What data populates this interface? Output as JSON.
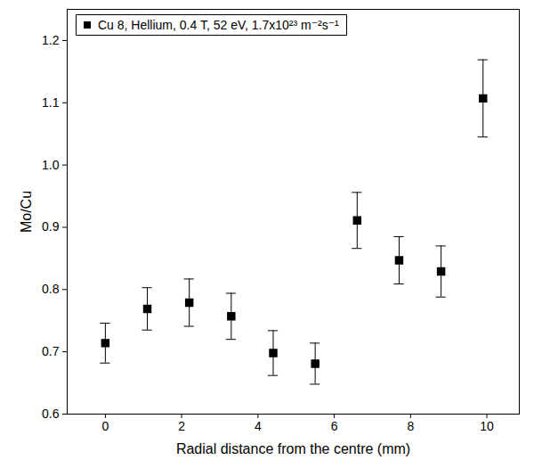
{
  "chart_data": {
    "type": "scatter",
    "x_label": "Radial distance from the centre (mm)",
    "y_label": "Mo/Cu",
    "x": [
      0,
      1.1,
      2.2,
      3.3,
      4.4,
      5.5,
      6.6,
      7.7,
      8.8,
      9.9
    ],
    "series": [
      {
        "name": "Cu 8, Hellium, 0.4 T, 52 eV, 1.7x10²³ m⁻²s⁻¹",
        "color": "#000000",
        "marker": "square",
        "values": [
          0.714,
          0.769,
          0.779,
          0.757,
          0.698,
          0.681,
          0.911,
          0.847,
          0.829,
          1.107
        ],
        "errors": [
          0.032,
          0.034,
          0.038,
          0.037,
          0.036,
          0.033,
          0.045,
          0.038,
          0.041,
          0.062
        ]
      }
    ],
    "xlim": [
      -1,
      10.85
    ],
    "ylim": [
      0.6,
      1.25
    ],
    "xticks": [
      0,
      2,
      4,
      6,
      8,
      10
    ],
    "yticks": [
      0.6,
      0.7,
      0.8,
      0.9,
      {
        "value": 1,
        "label": "1.0"
      },
      1.1,
      1.2
    ],
    "legend": "top-left",
    "grid": false
  }
}
